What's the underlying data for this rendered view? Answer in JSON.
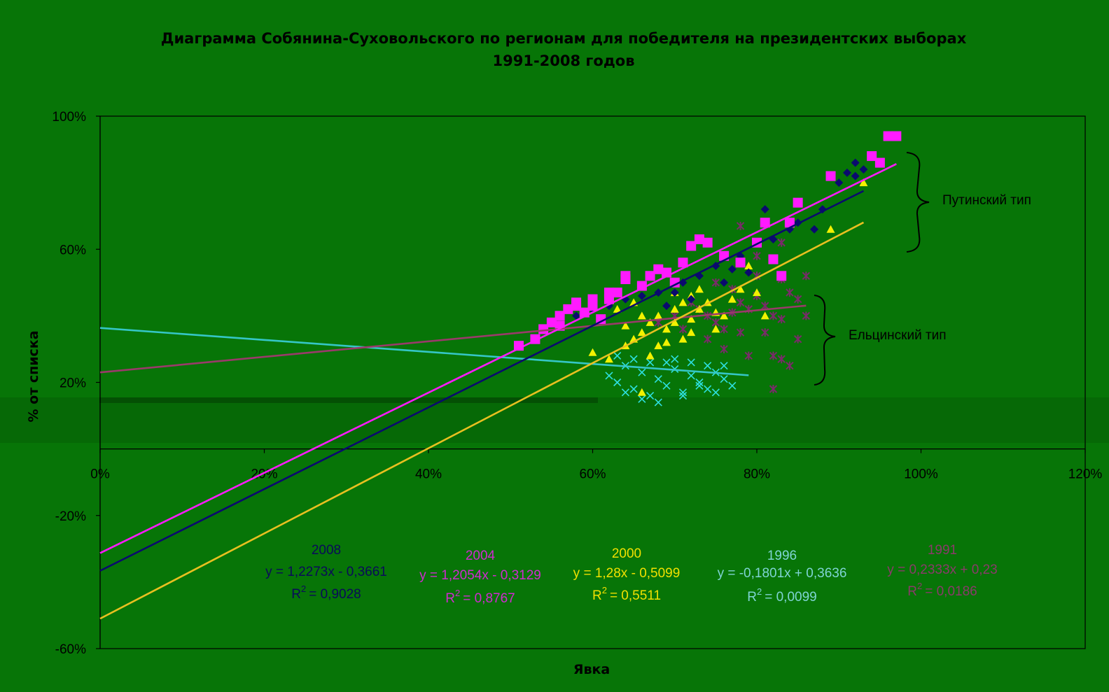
{
  "chart_data": {
    "type": "scatter",
    "title_line1": "Диаграмма Собянина-Суховольского по регионам для победителя на президентских выборах",
    "title_line2": "1991-2008 годов",
    "xlabel": "Явка",
    "ylabel": "% от списка",
    "xlim": [
      0,
      120
    ],
    "ylim": [
      -60,
      100
    ],
    "x_ticks": [
      "0%",
      "20%",
      "40%",
      "60%",
      "80%",
      "100%",
      "120%"
    ],
    "y_ticks": [
      "100%",
      "60%",
      "20%",
      "-20%",
      "-60%"
    ],
    "grid": false,
    "colors": {
      "background": "#077507",
      "2008": "#0a0a6e",
      "2004": "#ff1aff",
      "2000": "#f2f200",
      "1996": "#2ee0e0",
      "1991": "#7a2a6a",
      "line_2000": "#e8c020",
      "line_1996": "#35c6c6",
      "line_1991": "#9a3a6a"
    },
    "annotations": {
      "putin": "Путинский тип",
      "yeltsin": "Ельцинский тип"
    },
    "series": [
      {
        "name": "2008",
        "marker": "diamond",
        "trend": {
          "slope": 1.2273,
          "intercept": -0.3661,
          "x_range": [
            0,
            93
          ]
        },
        "equation": "y = 1,2273x - 0,3661",
        "r2_label": "R",
        "r2_exp": "2",
        "r2_value": "= 0,9028",
        "points": [
          [
            55,
            38
          ],
          [
            58,
            40
          ],
          [
            60,
            42
          ],
          [
            62,
            43
          ],
          [
            64,
            45
          ],
          [
            66,
            46
          ],
          [
            68,
            47
          ],
          [
            70,
            47
          ],
          [
            71,
            50
          ],
          [
            73,
            52
          ],
          [
            75,
            55
          ],
          [
            77,
            54
          ],
          [
            78,
            58
          ],
          [
            80,
            62
          ],
          [
            81,
            72
          ],
          [
            82,
            63
          ],
          [
            84,
            66
          ],
          [
            85,
            68
          ],
          [
            87,
            66
          ],
          [
            88,
            72
          ],
          [
            90,
            80
          ],
          [
            91,
            83
          ],
          [
            92,
            82
          ],
          [
            93,
            84
          ],
          [
            92,
            86
          ],
          [
            89,
            82
          ],
          [
            76,
            50
          ],
          [
            79,
            53
          ],
          [
            72,
            45
          ],
          [
            69,
            43
          ]
        ]
      },
      {
        "name": "2004",
        "marker": "square",
        "trend": {
          "slope": 1.2054,
          "intercept": -0.3129,
          "x_range": [
            0,
            97
          ]
        },
        "equation": "y = 1,2054x - 0,3129",
        "r2_label": "R",
        "r2_exp": "2",
        "r2_value": "= 0,8767",
        "points": [
          [
            51,
            31
          ],
          [
            53,
            33
          ],
          [
            54,
            36
          ],
          [
            55,
            38
          ],
          [
            56,
            40
          ],
          [
            57,
            42
          ],
          [
            58,
            44
          ],
          [
            59,
            41
          ],
          [
            60,
            43
          ],
          [
            61,
            39
          ],
          [
            62,
            45
          ],
          [
            63,
            47
          ],
          [
            64,
            51
          ],
          [
            66,
            49
          ],
          [
            67,
            52
          ],
          [
            68,
            54
          ],
          [
            70,
            50
          ],
          [
            71,
            56
          ],
          [
            72,
            61
          ],
          [
            73,
            63
          ],
          [
            74,
            62
          ],
          [
            76,
            58
          ],
          [
            78,
            56
          ],
          [
            80,
            62
          ],
          [
            81,
            68
          ],
          [
            82,
            57
          ],
          [
            83,
            52
          ],
          [
            84,
            68
          ],
          [
            85,
            74
          ],
          [
            89,
            82
          ],
          [
            94,
            88
          ],
          [
            95,
            86
          ],
          [
            96,
            94
          ],
          [
            97,
            94
          ],
          [
            56,
            37
          ],
          [
            58,
            43
          ],
          [
            60,
            45
          ],
          [
            62,
            47
          ],
          [
            64,
            52
          ],
          [
            69,
            53
          ]
        ]
      },
      {
        "name": "2000",
        "marker": "triangle",
        "trend": {
          "slope": 1.28,
          "intercept": -0.5099,
          "x_range": [
            0,
            93
          ]
        },
        "equation": "y = 1,28x - 0,5099",
        "r2_label": "R",
        "r2_exp": "2",
        "r2_value": "= 0,5511",
        "points": [
          [
            60,
            29
          ],
          [
            62,
            27
          ],
          [
            64,
            31
          ],
          [
            65,
            33
          ],
          [
            66,
            35
          ],
          [
            67,
            38
          ],
          [
            68,
            40
          ],
          [
            69,
            36
          ],
          [
            70,
            42
          ],
          [
            71,
            44
          ],
          [
            72,
            46
          ],
          [
            73,
            48
          ],
          [
            74,
            44
          ],
          [
            75,
            41
          ],
          [
            76,
            40
          ],
          [
            77,
            45
          ],
          [
            78,
            48
          ],
          [
            79,
            55
          ],
          [
            80,
            47
          ],
          [
            81,
            40
          ],
          [
            84,
            68
          ],
          [
            89,
            66
          ],
          [
            93,
            80
          ],
          [
            66,
            17
          ],
          [
            67,
            28
          ],
          [
            69,
            32
          ],
          [
            70,
            38
          ],
          [
            71,
            33
          ],
          [
            72,
            35
          ],
          [
            68,
            31
          ],
          [
            63,
            42
          ],
          [
            65,
            44
          ],
          [
            70,
            47
          ],
          [
            72,
            39
          ],
          [
            66,
            40
          ],
          [
            75,
            36
          ],
          [
            64,
            37
          ],
          [
            73,
            42
          ]
        ]
      },
      {
        "name": "1996",
        "marker": "x",
        "trend": {
          "slope": -0.1801,
          "intercept": 0.3636,
          "x_range": [
            0,
            79
          ]
        },
        "equation": "y = -0,1801x + 0,3636",
        "r2_label": "R",
        "r2_exp": "2",
        "r2_value": "= 0,0099",
        "points": [
          [
            62,
            22
          ],
          [
            63,
            20
          ],
          [
            64,
            25
          ],
          [
            65,
            18
          ],
          [
            66,
            23
          ],
          [
            67,
            16
          ],
          [
            68,
            21
          ],
          [
            69,
            19
          ],
          [
            70,
            24
          ],
          [
            71,
            17
          ],
          [
            72,
            22
          ],
          [
            73,
            20
          ],
          [
            74,
            18
          ],
          [
            75,
            23
          ],
          [
            76,
            21
          ],
          [
            77,
            19
          ],
          [
            63,
            28
          ],
          [
            65,
            27
          ],
          [
            67,
            26
          ],
          [
            70,
            27
          ],
          [
            72,
            26
          ],
          [
            74,
            25
          ],
          [
            66,
            15
          ],
          [
            68,
            14
          ],
          [
            71,
            16
          ],
          [
            73,
            19
          ],
          [
            75,
            17
          ],
          [
            69,
            26
          ],
          [
            64,
            17
          ],
          [
            76,
            25
          ]
        ]
      },
      {
        "name": "1991",
        "marker": "star",
        "trend": {
          "slope": 0.2333,
          "intercept": 0.23,
          "x_range": [
            0,
            86
          ]
        },
        "equation": "y = 0,2333x + 0,23",
        "r2_label": "R",
        "r2_exp": "2",
        "r2_value": "= 0,0186",
        "points": [
          [
            68,
            38
          ],
          [
            70,
            40
          ],
          [
            72,
            44
          ],
          [
            73,
            42
          ],
          [
            74,
            40
          ],
          [
            75,
            38
          ],
          [
            76,
            36
          ],
          [
            77,
            41
          ],
          [
            78,
            44
          ],
          [
            79,
            42
          ],
          [
            80,
            46
          ],
          [
            81,
            43
          ],
          [
            82,
            40
          ],
          [
            83,
            39
          ],
          [
            84,
            47
          ],
          [
            85,
            45
          ],
          [
            86,
            52
          ],
          [
            75,
            50
          ],
          [
            78,
            35
          ],
          [
            80,
            52
          ],
          [
            82,
            28
          ],
          [
            83,
            27
          ],
          [
            84,
            25
          ],
          [
            82,
            18
          ],
          [
            79,
            28
          ],
          [
            81,
            35
          ],
          [
            76,
            30
          ],
          [
            74,
            33
          ],
          [
            85,
            33
          ],
          [
            80,
            58
          ],
          [
            83,
            62
          ],
          [
            78,
            67
          ],
          [
            77,
            48
          ],
          [
            71,
            36
          ],
          [
            86,
            40
          ],
          [
            83,
            51
          ]
        ]
      }
    ]
  }
}
